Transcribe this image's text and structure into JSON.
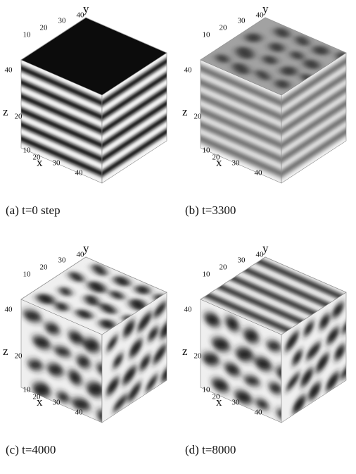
{
  "panels": [
    {
      "caption": "(a) t=0 step",
      "axis_labels": {
        "x": "x",
        "y": "y",
        "z": "z"
      },
      "y_ticks": [
        "10",
        "20",
        "30",
        "40"
      ],
      "z_ticks": [
        "40",
        "20"
      ],
      "x_ticks": [
        "10",
        "20",
        "30",
        "40"
      ]
    },
    {
      "caption": "(b) t=3300",
      "axis_labels": {
        "x": "x",
        "y": "y",
        "z": "z"
      },
      "y_ticks": [
        "10",
        "20",
        "30",
        "40"
      ],
      "z_ticks": [
        "40",
        "20"
      ],
      "x_ticks": [
        "10",
        "20",
        "30",
        "40"
      ]
    },
    {
      "caption": "(c) t=4000",
      "axis_labels": {
        "x": "x",
        "y": "y",
        "z": "z"
      },
      "y_ticks": [
        "10",
        "20",
        "30",
        "40"
      ],
      "z_ticks": [
        "40",
        "20"
      ],
      "x_ticks": [
        "10",
        "20",
        "30",
        "40"
      ]
    },
    {
      "caption": "(d) t=8000",
      "axis_labels": {
        "x": "x",
        "y": "y",
        "z": "z"
      },
      "y_ticks": [
        "10",
        "20",
        "30",
        "40"
      ],
      "z_ticks": [
        "40",
        "20"
      ],
      "x_ticks": [
        "10",
        "20",
        "30",
        "40"
      ]
    }
  ]
}
